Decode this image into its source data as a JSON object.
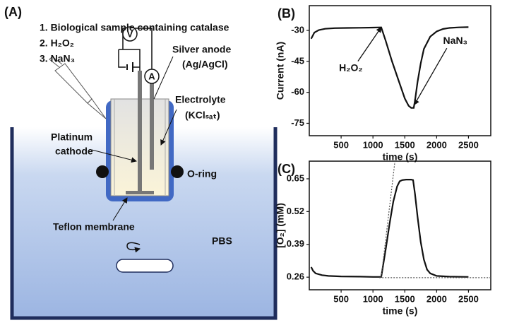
{
  "diagram": {
    "label": "(A)",
    "steps": [
      "1. Biological sample containing catalase",
      "2. H₂O₂",
      "3. NaN₃"
    ],
    "voltmeter": "V",
    "ammeter": "A",
    "anode": [
      "Silver anode",
      "(Ag/AgCl)"
    ],
    "electrolyte": [
      "Electrolyte",
      "(KClₛₐₜ)"
    ],
    "cathode": [
      "Platinum",
      "cathode"
    ],
    "oring": "O-ring",
    "membrane": "Teflon membrane",
    "buffer": "PBS"
  },
  "chart_data": [
    {
      "type": "line",
      "label": "(B)",
      "ylabel": "Current (nA)",
      "xlabel": "time (s)",
      "xlim": [
        0,
        2850
      ],
      "ylim": [
        -81,
        -18
      ],
      "xticks": [
        500,
        1000,
        1500,
        2000,
        2500
      ],
      "yticks": [
        -30,
        -45,
        -60,
        -75
      ],
      "series": [
        {
          "color": "#111111",
          "dashed": false,
          "x": [
            30,
            80,
            150,
            250,
            400,
            600,
            800,
            1000,
            1130,
            1200,
            1300,
            1400,
            1500,
            1560,
            1600,
            1640,
            1660,
            1700,
            1750,
            1800,
            1900,
            2000,
            2100,
            2200,
            2350,
            2500
          ],
          "values": [
            -34,
            -31,
            -29.8,
            -29.2,
            -28.9,
            -28.8,
            -28.7,
            -28.6,
            -28.5,
            -35,
            -45,
            -54,
            -63,
            -66.5,
            -67.5,
            -67.5,
            -64,
            -55,
            -46,
            -39,
            -33,
            -30.5,
            -29.3,
            -28.8,
            -28.5,
            -28.4
          ]
        }
      ],
      "annotations": [
        {
          "text": "H₂O₂",
          "x": 1130,
          "y": -28.5
        },
        {
          "text": "NaN₃",
          "x": 1650,
          "y": -66
        }
      ]
    },
    {
      "type": "line",
      "label": "(C)",
      "ylabel": "[O₂] (mM)",
      "xlabel": "time (s)",
      "xlim": [
        0,
        2850
      ],
      "ylim": [
        0.21,
        0.72
      ],
      "xticks": [
        500,
        1000,
        1500,
        2000,
        2500
      ],
      "yticks": [
        0.26,
        0.39,
        0.52,
        0.65
      ],
      "series": [
        {
          "color": "#111111",
          "dashed": false,
          "x": [
            30,
            60,
            100,
            200,
            300,
            500,
            800,
            1000,
            1130,
            1200,
            1260,
            1320,
            1380,
            1420,
            1460,
            1520,
            1600,
            1630,
            1660,
            1700,
            1750,
            1800,
            1850,
            1900,
            2000,
            2200,
            2500
          ],
          "values": [
            0.3,
            0.285,
            0.275,
            0.268,
            0.265,
            0.263,
            0.262,
            0.261,
            0.261,
            0.37,
            0.47,
            0.56,
            0.62,
            0.64,
            0.645,
            0.647,
            0.647,
            0.645,
            0.59,
            0.5,
            0.4,
            0.33,
            0.29,
            0.275,
            0.265,
            0.262,
            0.261
          ]
        },
        {
          "color": "#555555",
          "dashed": true,
          "x": [
            1130,
            1345
          ],
          "values": [
            0.26,
            0.72
          ]
        },
        {
          "color": "#555555",
          "dashed": true,
          "x": [
            1100,
            2850
          ],
          "values": [
            0.258,
            0.258
          ]
        }
      ]
    }
  ]
}
